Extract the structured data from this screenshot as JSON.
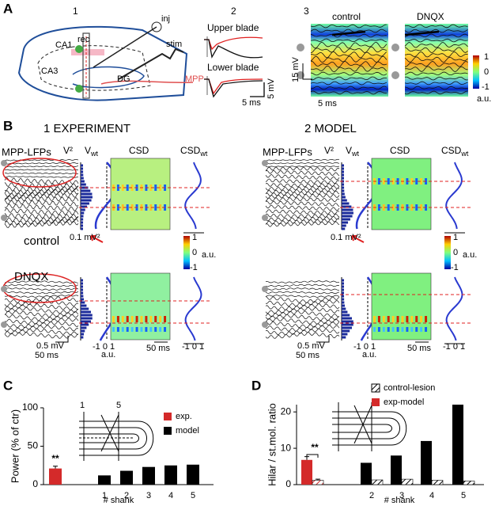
{
  "panel_a": {
    "label": "A",
    "sub1": "1",
    "rec": "rec",
    "inj": "inj",
    "ca1": "CA1",
    "ca3": "CA3",
    "dg": "DG",
    "stim": "stim",
    "mpp": "MPP",
    "sub2": "2",
    "upper": "Upper blade",
    "lower": "Lower blade",
    "scale_v": "5 mV",
    "scale_t": "5 ms",
    "sub3": "3",
    "control": "control",
    "dnqx": "DNQX",
    "scale_v3": "15 mV",
    "scale_t3": "5 ms",
    "colorbar": [
      "1",
      "0",
      "-1"
    ],
    "colorbar_unit": "a.u."
  },
  "panel_b": {
    "label": "B",
    "experiment": {
      "heading": "1  EXPERIMENT",
      "lfp": "MPP-LFPs",
      "v2": "V²",
      "vwt": {
        "main": "V",
        "sub": "wt"
      },
      "csd": "CSD",
      "csdwt": {
        "main": "CSD",
        "sub": "wt"
      },
      "v2_scale": "0.1 mV²",
      "condition_top": "control",
      "condition_bottom": "DNQX",
      "colorbar": [
        "1",
        "0",
        "-1"
      ],
      "colorbar_unit": "a.u.",
      "volt_scale": "0.5 mV",
      "time_scale": "50 ms",
      "vwt_axis": "-1 0 1",
      "vwt_unit": "a.u.",
      "csd_time": "50 ms",
      "csdwt_axis": "-1 0 1"
    },
    "model": {
      "heading": "2  MODEL",
      "lfp": "MPP-LFPs",
      "v2": "V²",
      "vwt": {
        "main": "V",
        "sub": "wt"
      },
      "csd": "CSD",
      "csdwt": {
        "main": "CSD",
        "sub": "wt"
      },
      "v2_scale": "0.1 mV²",
      "colorbar": [
        "1",
        "0",
        "-1"
      ],
      "colorbar_unit": "a.u.",
      "volt_scale": "0.5 mV",
      "time_scale": "50 ms",
      "vwt_axis": "-1 0 1",
      "vwt_unit": "a.u.",
      "csd_time": "50 ms",
      "csdwt_axis": "-1 0 1"
    }
  },
  "chart_data": [
    {
      "type": "bar",
      "label": "C",
      "ylabel": "Power (% of ctr)",
      "xlabel": "# shank",
      "inset_labels": [
        "1",
        "5"
      ],
      "categories": [
        null,
        "1",
        "2",
        "3",
        "4",
        "5"
      ],
      "ylim": [
        0,
        100
      ],
      "yticks": [
        0,
        50,
        100
      ],
      "series": [
        {
          "name": "exp.",
          "color": "#d42a2a",
          "values": [
            21,
            null,
            null,
            null,
            null,
            null
          ],
          "errors": [
            3,
            null,
            null,
            null,
            null,
            null
          ]
        },
        {
          "name": "model",
          "color": "#000000",
          "values": [
            null,
            12,
            18,
            23,
            25,
            26
          ]
        }
      ],
      "annotation": "**"
    },
    {
      "type": "bar",
      "label": "D",
      "ylabel": "Hilar / st.mol. ratio",
      "xlabel": "# shank",
      "categories": [
        null,
        "2",
        "3",
        "4",
        "5"
      ],
      "ylim": [
        0,
        22
      ],
      "yticks": [
        0,
        10,
        20
      ],
      "colors": [
        "#d42a2a",
        "#000000",
        "#000000",
        "#000000",
        "#000000"
      ],
      "series": [
        {
          "name": "exp-model",
          "values": [
            6.8,
            6,
            8,
            12,
            22
          ],
          "errors": [
            0.9,
            null,
            null,
            null,
            null
          ]
        },
        {
          "name": "control-lesion",
          "hatch": true,
          "values": [
            1.2,
            1.3,
            1.5,
            1.2,
            1.0
          ],
          "errors": [
            0.3,
            null,
            null,
            null,
            null
          ]
        }
      ],
      "annotation": "**"
    }
  ]
}
